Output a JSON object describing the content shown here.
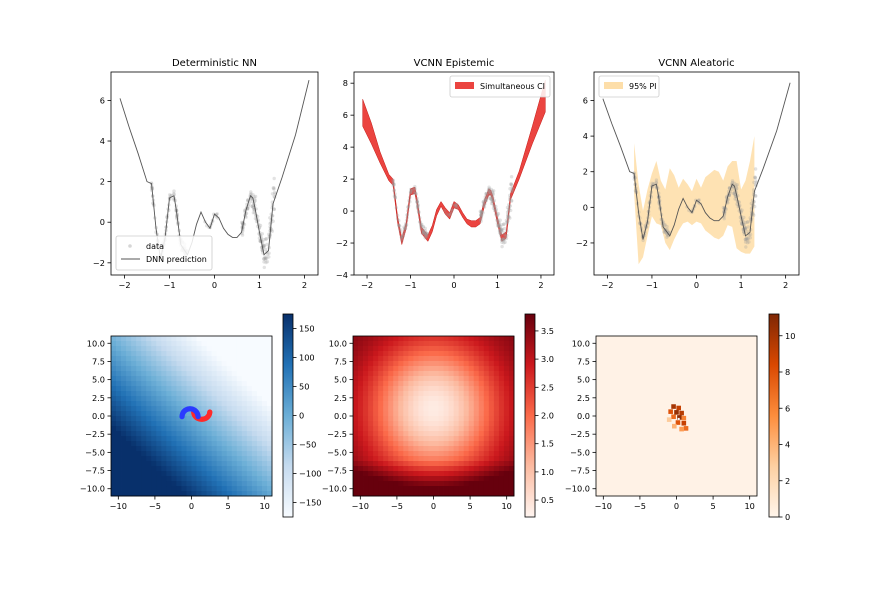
{
  "figure": {
    "background": "#ffffff"
  },
  "chart_data": [
    {
      "type": "line",
      "title": "Deterministic NN",
      "xlim": [
        -2.3,
        2.3
      ],
      "ylim": [
        -2.6,
        7.4
      ],
      "xticks": [
        "−2",
        "−1",
        "0",
        "1",
        "2"
      ],
      "xtick_values": [
        -2,
        -1,
        0,
        1,
        2
      ],
      "yticks": [
        "−2",
        "0",
        "2",
        "4",
        "6"
      ],
      "ytick_values": [
        -2,
        0,
        2,
        4,
        6
      ],
      "legend": {
        "position": "lower-left",
        "entries": [
          {
            "label": "data",
            "kind": "marker",
            "color": "#c8c8c8"
          },
          {
            "label": "DNN prediction",
            "kind": "line",
            "color": "#555555"
          }
        ]
      },
      "series": [
        {
          "name": "DNN prediction",
          "kind": "line",
          "color": "#555555",
          "x": [
            -2.1,
            -1.9,
            -1.7,
            -1.5,
            -1.4,
            -1.3,
            -1.2,
            -1.1,
            -1.0,
            -0.9,
            -0.85,
            -0.75,
            -0.6,
            -0.5,
            -0.4,
            -0.3,
            -0.2,
            -0.1,
            0.0,
            0.1,
            0.2,
            0.3,
            0.4,
            0.5,
            0.6,
            0.7,
            0.8,
            0.85,
            0.9,
            1.0,
            1.1,
            1.2,
            1.3,
            1.5,
            1.8,
            2.1
          ],
          "y": [
            6.1,
            4.7,
            3.4,
            2.0,
            1.9,
            -0.3,
            -1.8,
            -0.8,
            1.2,
            1.3,
            0.6,
            -1.1,
            -1.6,
            -1.0,
            -0.1,
            0.5,
            0.0,
            -0.3,
            0.4,
            0.2,
            -0.3,
            -0.6,
            -0.75,
            -0.75,
            -0.5,
            0.6,
            1.3,
            1.2,
            0.7,
            -0.5,
            -1.6,
            -1.4,
            0.9,
            2.2,
            4.3,
            7.0
          ]
        },
        {
          "name": "data",
          "kind": "scatter",
          "color": "#c8c8c8"
        }
      ]
    },
    {
      "type": "area",
      "title": "VCNN Epistemic",
      "xlim": [
        -2.3,
        2.3
      ],
      "ylim": [
        -4.0,
        8.7
      ],
      "xticks": [
        "−2",
        "−1",
        "0",
        "1",
        "2"
      ],
      "xtick_values": [
        -2,
        -1,
        0,
        1,
        2
      ],
      "yticks": [
        "−4",
        "−2",
        "0",
        "2",
        "4",
        "6",
        "8"
      ],
      "ytick_values": [
        -4,
        -2,
        0,
        2,
        4,
        6,
        8
      ],
      "legend": {
        "position": "top-right",
        "entries": [
          {
            "label": "Simultaneous CI",
            "kind": "patch",
            "color": "#e8231f"
          }
        ]
      },
      "series": [
        {
          "name": "Simultaneous CI",
          "kind": "band",
          "color": "#e8231f",
          "x": [
            -2.1,
            -1.9,
            -1.7,
            -1.5,
            -1.4,
            -1.3,
            -1.2,
            -1.1,
            -1.0,
            -0.9,
            -0.85,
            -0.75,
            -0.6,
            -0.5,
            -0.4,
            -0.3,
            -0.2,
            -0.1,
            0.0,
            0.1,
            0.2,
            0.3,
            0.4,
            0.5,
            0.6,
            0.7,
            0.8,
            0.85,
            0.9,
            1.0,
            1.1,
            1.2,
            1.3,
            1.5,
            1.8,
            2.1
          ],
          "y_lower": [
            5.3,
            4.2,
            3.0,
            1.9,
            1.6,
            -0.7,
            -2.1,
            -1.1,
            1.0,
            1.1,
            0.4,
            -1.4,
            -1.9,
            -1.3,
            -0.3,
            0.3,
            -0.2,
            -0.5,
            0.2,
            0.1,
            -0.4,
            -0.8,
            -1.0,
            -1.0,
            -0.8,
            0.3,
            1.0,
            1.0,
            0.5,
            -0.8,
            -1.9,
            -1.7,
            0.7,
            2.0,
            4.2,
            6.2
          ],
          "y_upper": [
            7.0,
            5.5,
            3.7,
            2.3,
            2.0,
            -0.3,
            -1.7,
            -0.7,
            1.4,
            1.5,
            0.8,
            -1.0,
            -1.5,
            -0.9,
            0.1,
            0.6,
            0.2,
            -0.1,
            0.6,
            0.4,
            -0.1,
            -0.5,
            -0.6,
            -0.6,
            -0.4,
            0.7,
            1.4,
            1.3,
            0.9,
            -0.4,
            -1.5,
            -1.3,
            1.1,
            2.5,
            5.3,
            8.2
          ]
        },
        {
          "name": "data",
          "kind": "scatter",
          "color": "#c8c8c8"
        }
      ]
    },
    {
      "type": "area",
      "title": "VCNN Aleatoric",
      "xlim": [
        -2.3,
        2.3
      ],
      "ylim": [
        -3.8,
        7.6
      ],
      "xticks": [
        "−2",
        "−1",
        "0",
        "1",
        "2"
      ],
      "xtick_values": [
        -2,
        -1,
        0,
        1,
        2
      ],
      "yticks": [
        "−2",
        "0",
        "2",
        "4",
        "6"
      ],
      "ytick_values": [
        -2,
        0,
        2,
        4,
        6
      ],
      "legend": {
        "position": "top-left",
        "entries": [
          {
            "label": "95% PI",
            "kind": "patch",
            "color": "#fdd89a"
          }
        ]
      },
      "series": [
        {
          "name": "95% PI",
          "kind": "band",
          "color": "#fdd89a",
          "x": [
            -1.4,
            -1.3,
            -1.2,
            -1.1,
            -1.0,
            -0.9,
            -0.8,
            -0.7,
            -0.6,
            -0.5,
            -0.4,
            -0.3,
            -0.2,
            -0.1,
            0.0,
            0.1,
            0.2,
            0.3,
            0.4,
            0.5,
            0.6,
            0.7,
            0.8,
            0.9,
            1.0,
            1.1,
            1.2,
            1.3
          ],
          "y_lower": [
            0.8,
            -3.2,
            -2.8,
            -1.6,
            -0.5,
            -0.9,
            -1.0,
            -2.0,
            -2.4,
            -1.8,
            -1.3,
            -0.9,
            -0.8,
            -1.0,
            -0.8,
            -0.9,
            -1.3,
            -1.5,
            -1.7,
            -1.8,
            -1.6,
            -1.0,
            -1.1,
            -2.3,
            -2.5,
            -2.6,
            -2.6,
            -2.2
          ],
          "y_upper": [
            3.6,
            1.3,
            -0.2,
            1.0,
            1.9,
            2.6,
            1.5,
            1.0,
            2.2,
            1.8,
            1.1,
            1.6,
            1.3,
            0.9,
            1.6,
            1.1,
            1.7,
            1.9,
            2.1,
            2.0,
            1.5,
            2.3,
            2.6,
            2.6,
            1.0,
            1.5,
            2.6,
            4.0
          ]
        },
        {
          "name": "mean",
          "kind": "line",
          "color": "#555555",
          "x": [
            -2.1,
            -1.9,
            -1.7,
            -1.5,
            -1.4,
            -1.3,
            -1.2,
            -1.1,
            -1.0,
            -0.9,
            -0.85,
            -0.75,
            -0.6,
            -0.5,
            -0.4,
            -0.3,
            -0.2,
            -0.1,
            0.0,
            0.1,
            0.2,
            0.3,
            0.4,
            0.5,
            0.6,
            0.7,
            0.8,
            0.85,
            0.9,
            1.0,
            1.1,
            1.2,
            1.3,
            1.5,
            1.8,
            2.1
          ],
          "y": [
            6.1,
            4.7,
            3.4,
            2.0,
            1.9,
            -0.3,
            -1.8,
            -0.8,
            1.2,
            1.3,
            0.6,
            -1.1,
            -1.6,
            -1.0,
            -0.1,
            0.5,
            0.0,
            -0.3,
            0.4,
            0.2,
            -0.3,
            -0.6,
            -0.75,
            -0.75,
            -0.5,
            0.6,
            1.3,
            1.2,
            0.7,
            -0.5,
            -1.6,
            -1.4,
            0.9,
            2.2,
            4.3,
            7.0
          ]
        },
        {
          "name": "data",
          "kind": "scatter",
          "color": "#c8c8c8"
        }
      ]
    },
    {
      "type": "heatmap",
      "colormap": "Blues",
      "cmap_colors": [
        "#f7fbff",
        "#c6dbef",
        "#6baed6",
        "#2171b5",
        "#08306b"
      ],
      "xlim": [
        -11,
        11
      ],
      "ylim": [
        -11,
        11
      ],
      "xticks": [
        "−10",
        "−5",
        "0",
        "5",
        "10"
      ],
      "xtick_values": [
        -10,
        -5,
        0,
        5,
        10
      ],
      "yticks": [
        "−10.0",
        "−7.5",
        "−5.0",
        "−2.5",
        "0.0",
        "2.5",
        "5.0",
        "7.5",
        "10.0"
      ],
      "ytick_values": [
        -10,
        -7.5,
        -5,
        -2.5,
        0,
        2.5,
        5,
        7.5,
        10
      ],
      "value_range": [
        -175,
        175
      ],
      "colorbar_ticks": [
        "150",
        "100",
        "50",
        "0",
        "−50",
        "−100",
        "−150"
      ],
      "colorbar_tick_values": [
        150,
        100,
        50,
        0,
        -50,
        -100,
        -150
      ],
      "overlay": {
        "kind": "two-moons",
        "colors": [
          "#2b3bff",
          "#ff2a2a"
        ]
      }
    },
    {
      "type": "heatmap",
      "colormap": "Reds",
      "cmap_colors": [
        "#fff5f0",
        "#fcbba1",
        "#fb6a4a",
        "#cb181d",
        "#67000d"
      ],
      "xlim": [
        -11,
        11
      ],
      "ylim": [
        -11,
        11
      ],
      "xticks": [
        "−10",
        "−5",
        "0",
        "5",
        "10"
      ],
      "xtick_values": [
        -10,
        -5,
        0,
        5,
        10
      ],
      "yticks": [
        "−10.0",
        "−7.5",
        "−5.0",
        "−2.5",
        "0.0",
        "2.5",
        "5.0",
        "7.5",
        "10.0"
      ],
      "ytick_values": [
        -10,
        -7.5,
        -5,
        -2.5,
        0,
        2.5,
        5,
        7.5,
        10
      ],
      "value_range": [
        0.2,
        3.8
      ],
      "colorbar_ticks": [
        "3.5",
        "3.0",
        "2.5",
        "2.0",
        "1.5",
        "1.0",
        "0.5"
      ],
      "colorbar_tick_values": [
        3.5,
        3.0,
        2.5,
        2.0,
        1.5,
        1.0,
        0.5
      ]
    },
    {
      "type": "heatmap",
      "colormap": "Oranges",
      "cmap_colors": [
        "#fff5eb",
        "#fdd0a2",
        "#fd8d3c",
        "#d94801",
        "#7f2704"
      ],
      "xlim": [
        -11,
        11
      ],
      "ylim": [
        -11,
        11
      ],
      "xticks": [
        "−10",
        "−5",
        "0",
        "5",
        "10"
      ],
      "xtick_values": [
        -10,
        -5,
        0,
        5,
        10
      ],
      "yticks": [
        "−10.0",
        "−7.5",
        "−5.0",
        "−2.5",
        "0.0",
        "2.5",
        "5.0",
        "7.5",
        "10.0"
      ],
      "ytick_values": [
        -10,
        -7.5,
        -5,
        -2.5,
        0,
        2.5,
        5,
        7.5,
        10
      ],
      "value_range": [
        0,
        11.2
      ],
      "colorbar_ticks": [
        "10",
        "8",
        "6",
        "4",
        "2",
        "0"
      ],
      "colorbar_tick_values": [
        10,
        8,
        6,
        4,
        2,
        0
      ]
    }
  ]
}
